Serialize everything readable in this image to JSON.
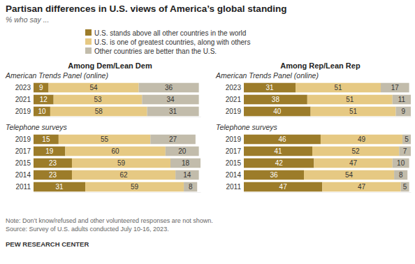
{
  "title": "Partisan differences in U.S. views of America’s global standing",
  "subtitle": "% who say ...",
  "notes": [
    "Note: Don’t know/refused and other volunteered responses are not shown.",
    "Source: Survey of U.S. adults conducted July 10-16, 2023."
  ],
  "credit": "PEW RESEARCH CENTER",
  "chart_data": [
    {
      "type": "bar",
      "orientation": "horizontal",
      "stacked": true,
      "data_labels": true,
      "tick_labels": "y",
      "title": "Among Dem/Lean Dem",
      "subtitle": "American Trends Panel (online)",
      "categories": [
        "2023",
        "2021",
        "2019"
      ],
      "xlim": [
        0,
        100
      ],
      "series": [
        {
          "name": "U.S. stands above all other countries in the world",
          "color": "#9c7c2a",
          "values": [
            9,
            12,
            10
          ]
        },
        {
          "name": "U.S. is one of greatest countries, along with others",
          "color": "#e6c983",
          "values": [
            54,
            53,
            58
          ]
        },
        {
          "name": "Other countries are better than the U.S.",
          "color": "#c2bcab",
          "values": [
            36,
            34,
            31
          ]
        }
      ]
    },
    {
      "type": "bar",
      "orientation": "horizontal",
      "stacked": true,
      "data_labels": true,
      "tick_labels": "y",
      "subtitle": "Telephone surveys",
      "categories": [
        "2019",
        "2017",
        "2015",
        "2014",
        "2011"
      ],
      "xlim": [
        0,
        100
      ],
      "series": [
        {
          "color": "#9c7c2a",
          "values": [
            15,
            19,
            23,
            23,
            31
          ]
        },
        {
          "color": "#e6c983",
          "values": [
            55,
            60,
            59,
            62,
            59
          ]
        },
        {
          "color": "#c2bcab",
          "values": [
            27,
            20,
            18,
            14,
            8
          ]
        }
      ]
    },
    {
      "type": "bar",
      "orientation": "horizontal",
      "stacked": true,
      "data_labels": true,
      "tick_labels": "y",
      "title": "Among Rep/Lean Rep",
      "subtitle": "American Trends Panel (online)",
      "categories": [
        "2023",
        "2021",
        "2019"
      ],
      "xlim": [
        0,
        100
      ],
      "series": [
        {
          "color": "#9c7c2a",
          "values": [
            31,
            38,
            40
          ]
        },
        {
          "color": "#e6c983",
          "values": [
            51,
            51,
            51
          ]
        },
        {
          "color": "#c2bcab",
          "values": [
            17,
            11,
            9
          ]
        }
      ]
    },
    {
      "type": "bar",
      "orientation": "horizontal",
      "stacked": true,
      "data_labels": true,
      "tick_labels": "y",
      "subtitle": "Telephone surveys",
      "categories": [
        "2019",
        "2017",
        "2015",
        "2014",
        "2011"
      ],
      "xlim": [
        0,
        100
      ],
      "series": [
        {
          "color": "#9c7c2a",
          "values": [
            46,
            41,
            42,
            36,
            47
          ]
        },
        {
          "color": "#e6c983",
          "values": [
            49,
            52,
            47,
            54,
            47
          ]
        },
        {
          "color": "#c2bcab",
          "values": [
            5,
            7,
            10,
            8,
            5
          ]
        }
      ]
    }
  ]
}
